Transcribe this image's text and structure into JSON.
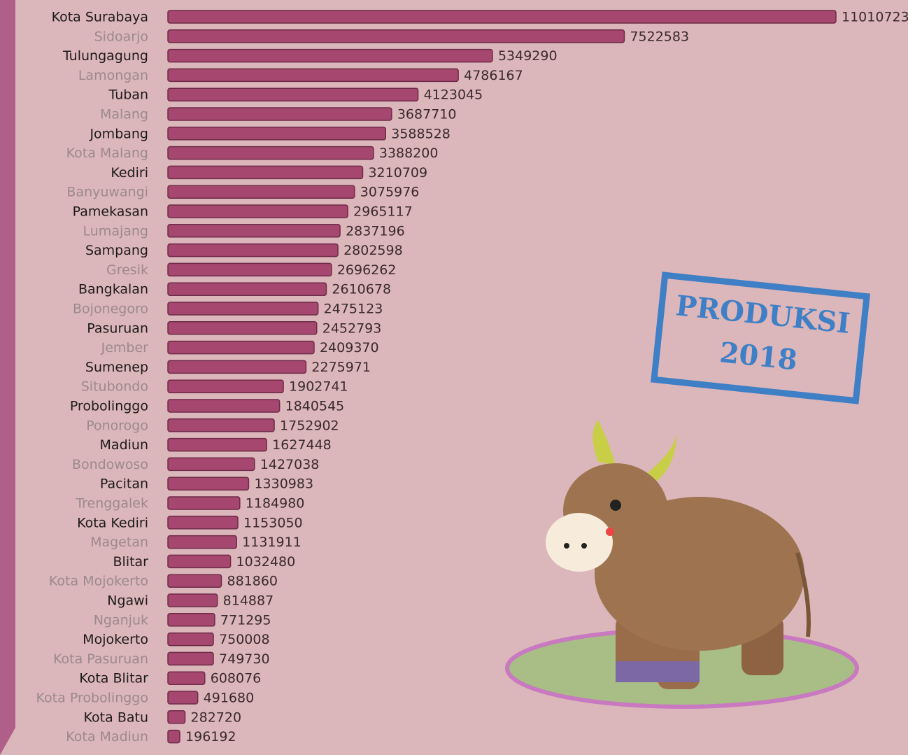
{
  "chart_data": {
    "type": "bar",
    "orientation": "horizontal",
    "color": "#a5476f",
    "categories": [
      "Kota Surabaya",
      "Sidoarjo",
      "Tulungagung",
      "Lamongan",
      "Tuban",
      "Malang",
      "Jombang",
      "Kota Malang",
      "Kediri",
      "Banyuwangi",
      "Pamekasan",
      "Lumajang",
      "Sampang",
      "Gresik",
      "Bangkalan",
      "Bojonegoro",
      "Pasuruan",
      "Jember",
      "Sumenep",
      "Situbondo",
      "Probolinggo",
      "Ponorogo",
      "Madiun",
      "Bondowoso",
      "Pacitan",
      "Trenggalek",
      "Kota Kediri",
      "Magetan",
      "Blitar",
      "Kota Mojokerto",
      "Ngawi",
      "Nganjuk",
      "Mojokerto",
      "Kota Pasuruan",
      "Kota Blitar",
      "Kota Probolinggo",
      "Kota Batu",
      "Kota Madiun"
    ],
    "values": [
      11010723,
      7522583,
      5349290,
      4786167,
      4123045,
      3687710,
      3588528,
      3388200,
      3210709,
      3075976,
      2965117,
      2837196,
      2802598,
      2696262,
      2610678,
      2475123,
      2452793,
      2409370,
      2275971,
      1902741,
      1840545,
      1752902,
      1627448,
      1427038,
      1330983,
      1184980,
      1153050,
      1131911,
      1032480,
      881860,
      814887,
      771295,
      750008,
      749730,
      608076,
      491680,
      282720,
      196192
    ],
    "annotations": [
      "PRODUKSI",
      "2018"
    ]
  }
}
